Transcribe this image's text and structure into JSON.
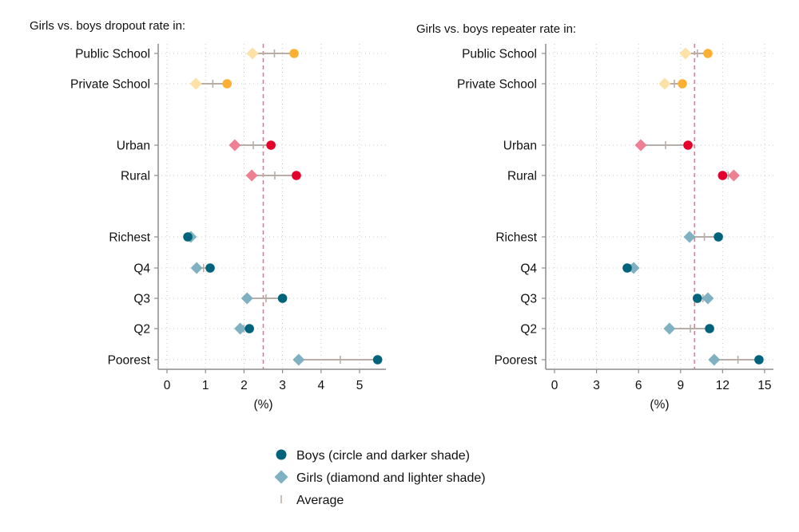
{
  "chart_data": [
    {
      "type": "dot-dumbbell",
      "title": "Girls vs. boys dropout rate in:",
      "xlabel": "(%)",
      "xlim": [
        -0.2,
        5.6
      ],
      "xticks": [
        0,
        1,
        2,
        3,
        4,
        5
      ],
      "reference_line": 2.5,
      "grid": true,
      "categories": [
        "Public School",
        "Private School",
        "Urban",
        "Rural",
        "Richest",
        "Q4",
        "Q3",
        "Q2",
        "Poorest"
      ],
      "groups": [
        "school",
        "school",
        "location",
        "location",
        "wealth",
        "wealth",
        "wealth",
        "wealth",
        "wealth"
      ],
      "series": [
        {
          "name": "Boys",
          "marker": "circle",
          "values": [
            3.3,
            1.56,
            2.7,
            3.36,
            0.54,
            1.12,
            3.0,
            2.14,
            5.47
          ]
        },
        {
          "name": "Girls",
          "marker": "diamond",
          "values": [
            2.22,
            0.75,
            1.76,
            2.2,
            0.62,
            0.77,
            2.08,
            1.9,
            3.42
          ]
        },
        {
          "name": "Average",
          "marker": "tick",
          "values": [
            2.79,
            1.19,
            2.24,
            2.8,
            0.58,
            0.95,
            2.57,
            2.0,
            4.5
          ]
        }
      ]
    },
    {
      "type": "dot-dumbbell",
      "title": "Girls vs. boys repeater rate in:",
      "xlabel": "(%)",
      "xlim": [
        -0.6,
        15.6
      ],
      "xticks": [
        0,
        3,
        6,
        9,
        12,
        15
      ],
      "reference_line": 10.0,
      "grid": true,
      "categories": [
        "Public School",
        "Private School",
        "Urban",
        "Rural",
        "Richest",
        "Q4",
        "Q3",
        "Q2",
        "Poorest"
      ],
      "groups": [
        "school",
        "school",
        "location",
        "location",
        "wealth",
        "wealth",
        "wealth",
        "wealth",
        "wealth"
      ],
      "series": [
        {
          "name": "Boys",
          "marker": "circle",
          "values": [
            10.95,
            9.13,
            9.53,
            12.0,
            11.7,
            5.19,
            10.2,
            11.07,
            14.6
          ]
        },
        {
          "name": "Girls",
          "marker": "diamond",
          "values": [
            9.35,
            7.87,
            6.16,
            12.8,
            9.64,
            5.65,
            10.95,
            8.21,
            11.4
          ]
        },
        {
          "name": "Average",
          "marker": "tick",
          "values": [
            10.2,
            8.56,
            7.93,
            12.4,
            10.7,
            5.4,
            10.6,
            9.7,
            13.1
          ]
        }
      ]
    }
  ],
  "colors": {
    "school_dark": "#fbb034",
    "school_light": "#fde1a6",
    "location_dark": "#e4002b",
    "location_light": "#ef7f93",
    "wealth_dark": "#00637c",
    "wealth_light": "#7fb1c2",
    "connector": "#b9aea7",
    "reference": "#e8778e",
    "axis": "#8c8c8c",
    "grid": "#c8c8c8"
  },
  "legend": {
    "items": [
      {
        "label": "Boys (circle and darker shade)",
        "marker": "circle"
      },
      {
        "label": "Girls (diamond and lighter shade)",
        "marker": "diamond"
      },
      {
        "label": "Average",
        "marker": "tick"
      }
    ]
  }
}
